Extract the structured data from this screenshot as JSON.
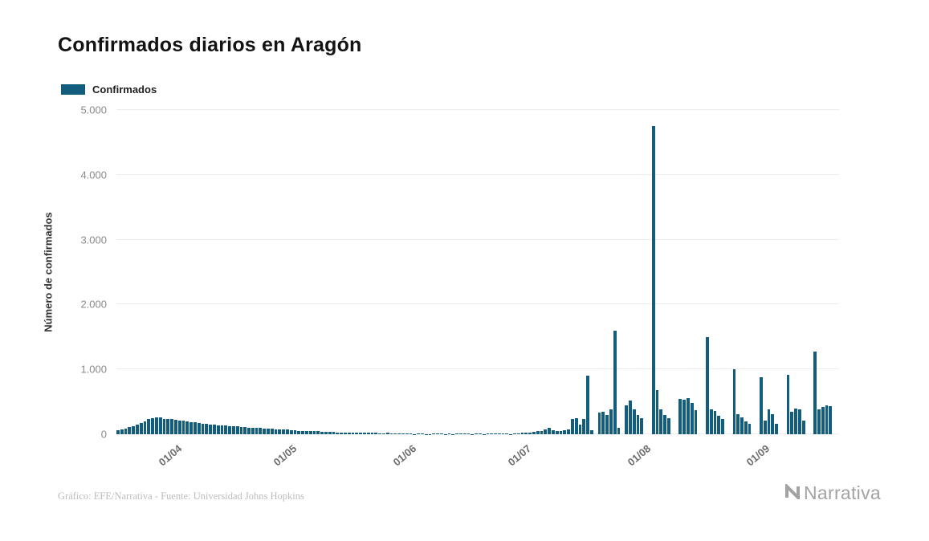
{
  "header": {
    "title": "Confirmados diarios en Aragón"
  },
  "legend": {
    "label": "Confirmados",
    "color": "#125d7d"
  },
  "footer": {
    "credit": "Gráfico: EFE/Narrativa - Fuente: Universidad Johns Hopkins"
  },
  "logo": {
    "text": "Narrativa"
  },
  "chart_data": {
    "type": "bar",
    "title": "Confirmados diarios en Aragón",
    "xlabel": "",
    "ylabel": "Número de confirmados",
    "ylim": [
      0,
      5000
    ],
    "grid": true,
    "legend_position": "top-left",
    "legend": [
      "Confirmados"
    ],
    "bar_color": "#125d7d",
    "y_ticks": [
      "0",
      "1.000",
      "2.000",
      "3.000",
      "4.000",
      "5.000"
    ],
    "x_ticks": [
      {
        "label": "01/04",
        "index": 15
      },
      {
        "label": "01/05",
        "index": 45
      },
      {
        "label": "01/06",
        "index": 76
      },
      {
        "label": "01/07",
        "index": 106
      },
      {
        "label": "01/08",
        "index": 137
      },
      {
        "label": "01/09",
        "index": 168
      }
    ],
    "values": [
      60,
      75,
      90,
      110,
      130,
      150,
      170,
      200,
      230,
      250,
      265,
      255,
      240,
      230,
      230,
      225,
      215,
      205,
      195,
      185,
      180,
      170,
      160,
      155,
      150,
      145,
      140,
      135,
      140,
      130,
      125,
      120,
      115,
      110,
      105,
      100,
      95,
      95,
      90,
      90,
      85,
      80,
      80,
      75,
      70,
      65,
      60,
      55,
      55,
      50,
      50,
      45,
      45,
      40,
      40,
      35,
      35,
      30,
      30,
      30,
      25,
      25,
      25,
      20,
      20,
      20,
      25,
      20,
      15,
      15,
      20,
      15,
      15,
      10,
      10,
      15,
      10,
      5,
      8,
      10,
      5,
      5,
      10,
      12,
      8,
      5,
      8,
      5,
      10,
      12,
      18,
      10,
      5,
      8,
      10,
      5,
      10,
      15,
      10,
      18,
      12,
      8,
      5,
      10,
      15,
      20,
      25,
      30,
      40,
      45,
      55,
      70,
      95,
      60,
      50,
      55,
      65,
      75,
      230,
      250,
      150,
      240,
      900,
      60,
      0,
      330,
      350,
      300,
      380,
      1600,
      100,
      0,
      450,
      520,
      380,
      300,
      250,
      0,
      0,
      4750,
      680,
      380,
      300,
      250,
      0,
      0,
      550,
      530,
      560,
      480,
      370,
      0,
      0,
      1500,
      380,
      360,
      280,
      230,
      0,
      0,
      1000,
      310,
      260,
      200,
      160,
      0,
      0,
      880,
      210,
      380,
      310,
      160,
      0,
      0,
      920,
      350,
      400,
      380,
      210,
      0,
      0,
      1280,
      380,
      420,
      450,
      430,
      0,
      0
    ]
  }
}
